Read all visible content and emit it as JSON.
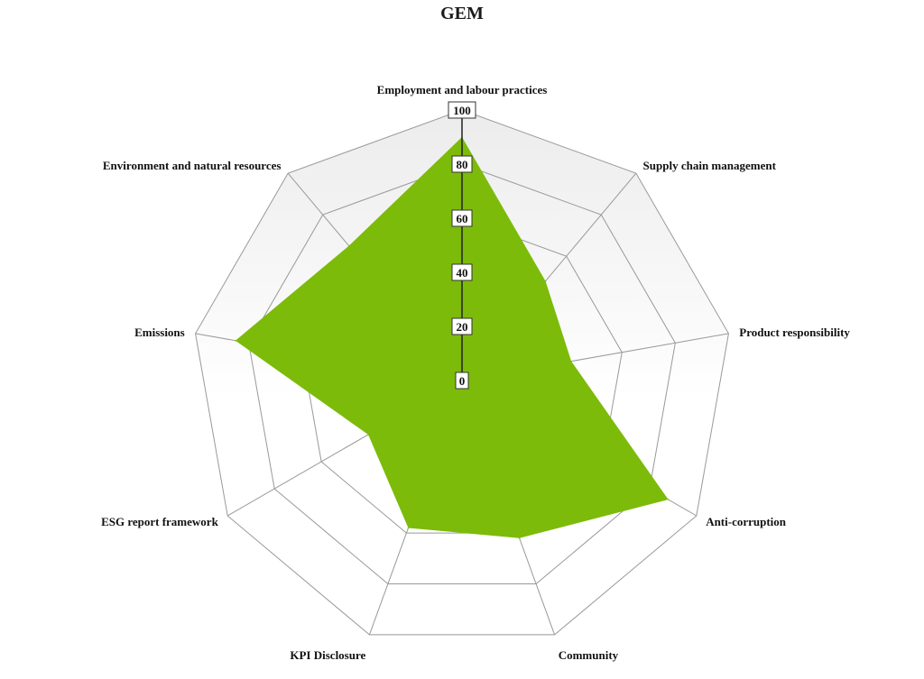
{
  "chart_data": {
    "type": "radar",
    "title": "GEM",
    "categories": [
      "Employment and labour practices",
      "Supply chain management",
      "Product responsibility",
      "Anti-corruption",
      "Community",
      "KPI Disclosure",
      "ESG report framework",
      "Emissions",
      "Environment and natural resources"
    ],
    "series": [
      {
        "values": [
          90,
          48,
          41,
          88,
          62,
          58,
          40,
          85,
          65
        ]
      }
    ],
    "ylim": [
      0,
      100
    ],
    "ticks": [
      "0",
      "20",
      "40",
      "60",
      "80",
      "100"
    ],
    "grid": true,
    "colors": {
      "fill": "#7cbb0a",
      "grid": "#999999",
      "band": "#ececec",
      "spoke": "#222222"
    }
  }
}
